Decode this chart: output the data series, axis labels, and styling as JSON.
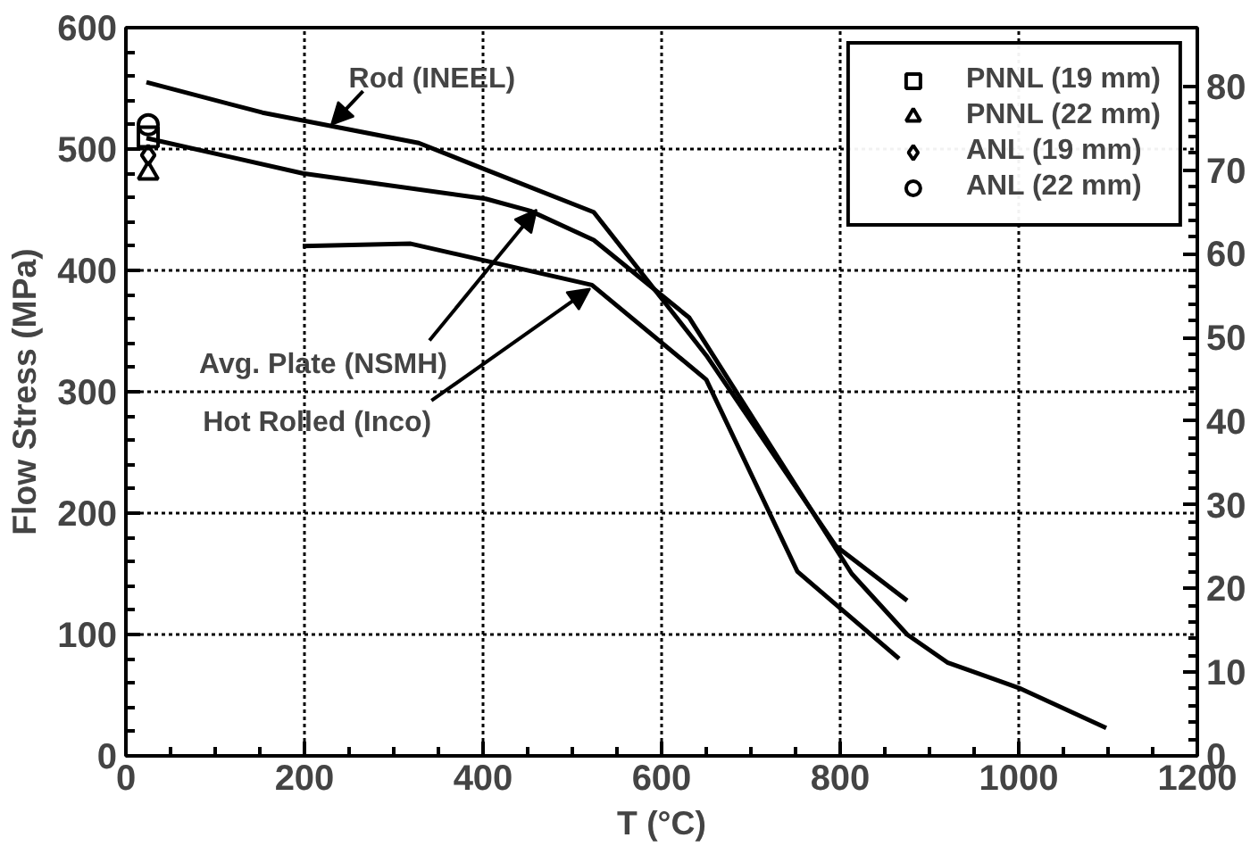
{
  "chart_data": {
    "type": "line",
    "xlabel": "T (°C)",
    "ylabel": "Flow Stress (MPa)",
    "xlim": [
      0,
      1200
    ],
    "xticks": [
      0,
      200,
      400,
      600,
      800,
      1000,
      1200
    ],
    "ylim": [
      0,
      600
    ],
    "yticks": [
      0,
      100,
      200,
      300,
      400,
      500,
      600
    ],
    "y2lim": [
      0,
      87.02
    ],
    "y2ticks": [
      0,
      10,
      20,
      30,
      40,
      50,
      60,
      70,
      80
    ],
    "grid": true,
    "legend": "top right",
    "line_style": "solid",
    "series": [
      {
        "color": "#000000",
        "x": [
          23,
          153,
          328,
          403,
          524,
          650,
          795,
          875
        ],
        "values": [
          555,
          530,
          505,
          483,
          448,
          330,
          173,
          128
        ]
      },
      {
        "color": "#000000",
        "x": [
          23,
          198,
          403,
          453,
          524,
          631,
          813,
          875,
          920,
          1000,
          1098
        ],
        "values": [
          509,
          480,
          459,
          449,
          425,
          361,
          150,
          100,
          77,
          56,
          23
        ]
      },
      {
        "color": "#000000",
        "x": [
          198,
          319,
          522,
          650,
          752,
          866
        ],
        "values": [
          420,
          422,
          388,
          310,
          152,
          80
        ]
      },
      {
        "type": "scatter",
        "name": "PNNL (19 mm)",
        "marker": "square",
        "color": "#000000",
        "x": [
          25
        ],
        "values": [
          510
        ]
      },
      {
        "type": "scatter",
        "name": "PNNL (22 mm)",
        "marker": "triangle",
        "color": "#000000",
        "x": [
          25
        ],
        "values": [
          480
        ]
      },
      {
        "type": "scatter",
        "name": "ANL (19 mm)",
        "marker": "diamond",
        "color": "#000000",
        "x": [
          25
        ],
        "values": [
          495
        ]
      },
      {
        "type": "scatter",
        "name": "ANL (22 mm)",
        "marker": "circle",
        "color": "#000000",
        "x": [
          25
        ],
        "values": [
          520
        ]
      }
    ],
    "annotations": [
      {
        "text": "Rod (INEEL)",
        "x": 230,
        "y": 520
      },
      {
        "text": "Avg. Plate (NSMH)",
        "x": 460,
        "y": 450
      },
      {
        "text": "Hot Rolled (Inco)",
        "x": 520,
        "y": 385
      }
    ]
  }
}
